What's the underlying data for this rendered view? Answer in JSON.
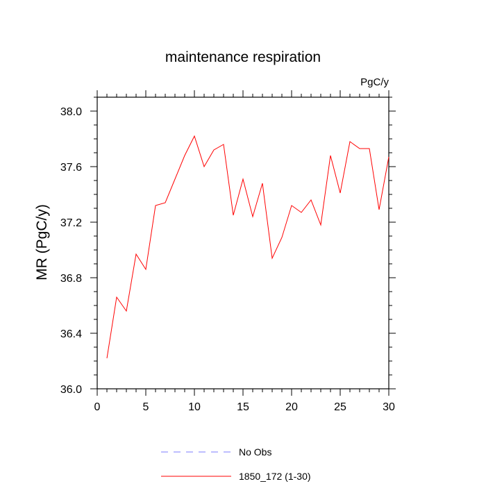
{
  "chart_data": {
    "type": "line",
    "title": "maintenance respiration",
    "units_label": "PgC/y",
    "ylabel": "MR  (PgC/y)",
    "xlabel": "",
    "xlim": [
      0,
      30
    ],
    "ylim": [
      36.0,
      38.1
    ],
    "x_ticks": [
      0,
      5,
      10,
      15,
      20,
      25,
      30
    ],
    "y_ticks": [
      "36.0",
      "36.4",
      "36.8",
      "37.2",
      "37.6",
      "38.0"
    ],
    "grid": false,
    "legend_position": "bottom",
    "series": [
      {
        "name": "1850_172 (1-30)",
        "color": "#ff0000",
        "style": "solid",
        "x": [
          1,
          2,
          3,
          4,
          5,
          6,
          7,
          8,
          9,
          10,
          11,
          12,
          13,
          14,
          15,
          16,
          17,
          18,
          19,
          20,
          21,
          22,
          23,
          24,
          25,
          26,
          27,
          28,
          29,
          30
        ],
        "y": [
          36.22,
          36.66,
          36.56,
          36.97,
          36.86,
          37.32,
          37.34,
          37.51,
          37.68,
          37.82,
          37.6,
          37.72,
          37.76,
          37.25,
          37.51,
          37.24,
          37.48,
          36.94,
          37.09,
          37.32,
          37.27,
          37.36,
          37.18,
          37.68,
          37.41,
          37.78,
          37.73,
          37.73,
          37.29,
          37.67
        ]
      }
    ],
    "legend": [
      {
        "label": "No Obs",
        "color": "#7b7bff",
        "style": "dashed"
      },
      {
        "label": "1850_172 (1-30)",
        "color": "#ff0000",
        "style": "solid"
      }
    ]
  }
}
